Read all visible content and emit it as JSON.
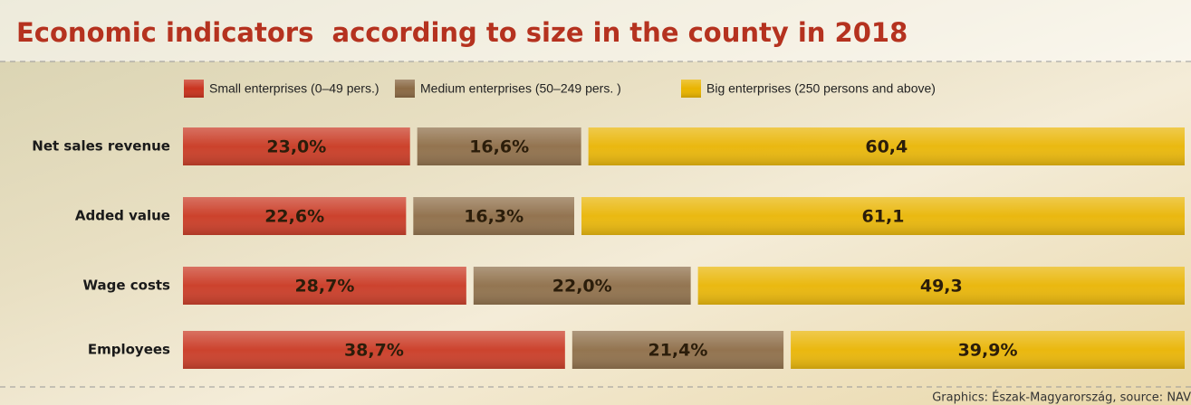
{
  "chart_data": {
    "type": "stacked-bar-horizontal",
    "title": "Economic indicators  according to size in the county in 2018",
    "categories": [
      "Net sales revenue",
      "Added value",
      "Wage costs",
      "Employees"
    ],
    "series": [
      {
        "name": "Small enterprises (0–49 pers.)",
        "color": "#c9341f",
        "values": [
          23.0,
          22.6,
          28.7,
          38.7
        ],
        "value_labels": [
          "23,0%",
          "22,6%",
          "28,7%",
          "38,7%"
        ]
      },
      {
        "name": "Medium enterprises (50–249 pers. )",
        "color": "#8b6a45",
        "values": [
          16.6,
          16.3,
          22.0,
          21.4
        ],
        "value_labels": [
          "16,6%",
          "16,3%",
          "22,0%",
          "21,4%"
        ]
      },
      {
        "name": "Big enterprises (250 persons and above)",
        "color": "#e9b400",
        "values": [
          60.4,
          61.1,
          49.3,
          39.9
        ],
        "value_labels": [
          "60,4",
          "61,1",
          "49,3",
          "39,9%"
        ]
      }
    ],
    "source": "Graphics: Észak-Magyarország, source: NAV"
  }
}
